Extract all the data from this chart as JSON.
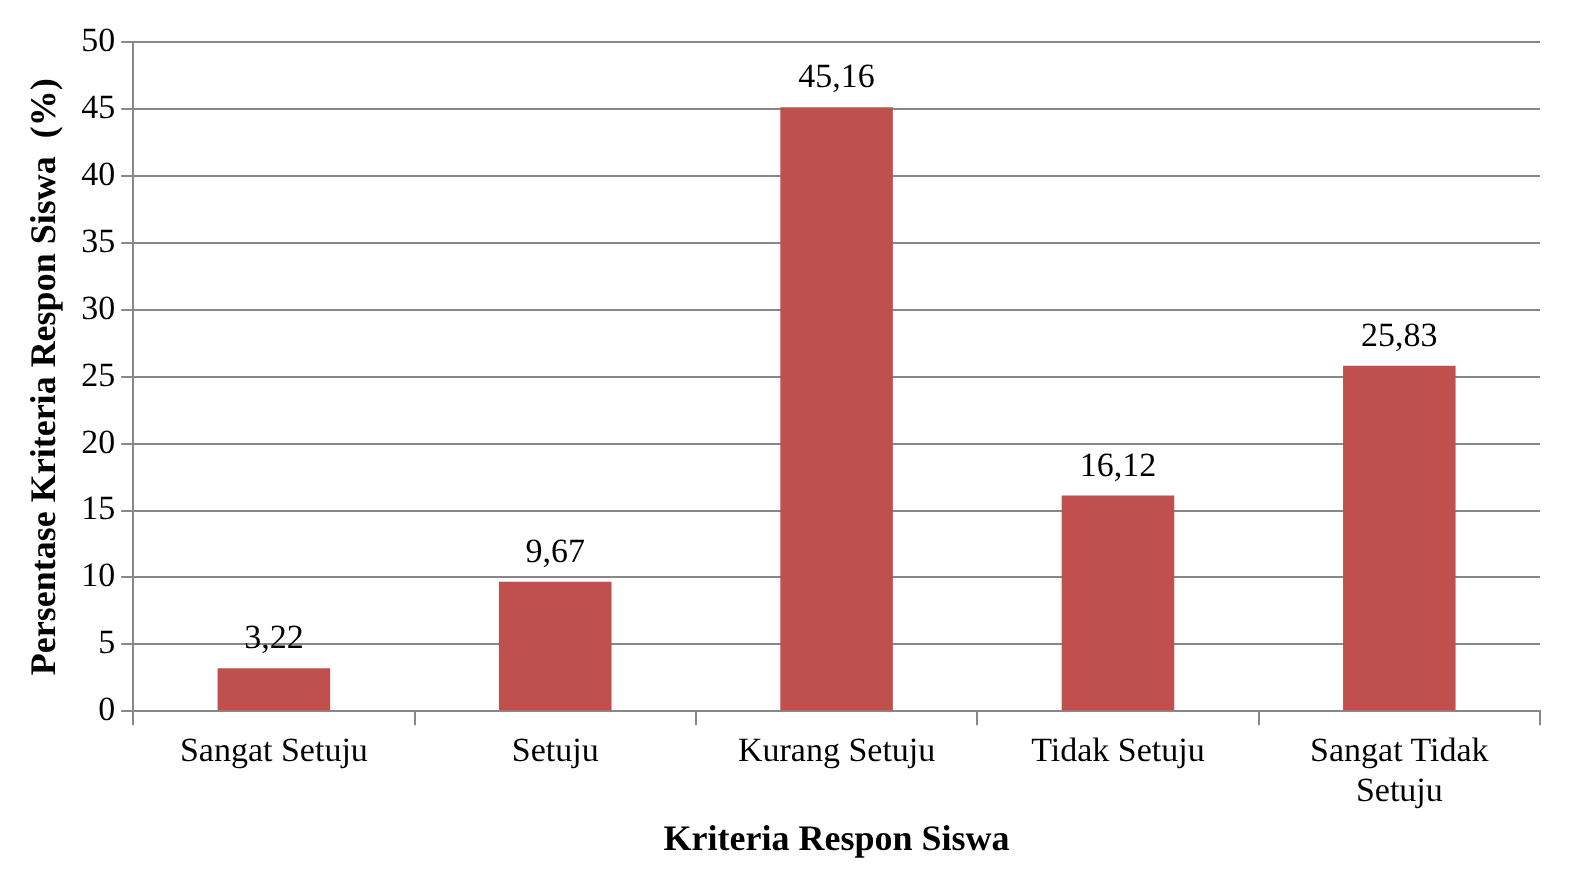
{
  "chart_data": {
    "type": "bar",
    "xlabel": "Kriteria Respon Siswa",
    "ylabel": "Persentase Kriteria Respon Siswa  (%)",
    "categories": [
      "Sangat Setuju",
      "Setuju",
      "Kurang Setuju",
      "Tidak Setuju",
      "Sangat Tidak Setuju"
    ],
    "values": [
      3.22,
      9.67,
      45.16,
      16.12,
      25.83
    ],
    "value_labels": [
      "3,22",
      "9,67",
      "45,16",
      "16,12",
      "25,83"
    ],
    "color": "#c0504d",
    "ylim": [
      0,
      50
    ],
    "yticks": [
      0,
      5,
      10,
      15,
      20,
      25,
      30,
      35,
      40,
      45,
      50
    ],
    "grid": "y",
    "legend": false
  }
}
